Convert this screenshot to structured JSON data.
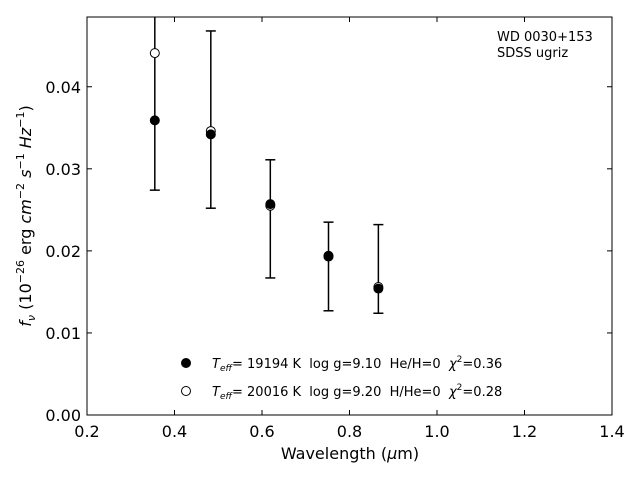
{
  "chart_data": {
    "type": "scatter",
    "annotation": [
      "WD 0030+153",
      "SDSS ugriz"
    ],
    "xlabel": "Wavelength (μm)",
    "ylabel": "f_ν (10^-26 erg cm^-2 s^-1 Hz^-1)",
    "xlim": [
      0.2,
      1.4
    ],
    "ylim": [
      0.0,
      0.0485
    ],
    "xticks": [
      0.2,
      0.4,
      0.6,
      0.8,
      1.0,
      1.2,
      1.4
    ],
    "yticks": [
      0.0,
      0.01,
      0.02,
      0.03,
      0.04
    ],
    "xtick_labels": [
      "0.2",
      "0.4",
      "0.6",
      "0.8",
      "1.0",
      "1.2",
      "1.4"
    ],
    "ytick_labels": [
      "0.00",
      "0.01",
      "0.02",
      "0.03",
      "0.04"
    ],
    "grid": false,
    "legend_placement": "bottom-center",
    "observed": {
      "x": [
        0.355,
        0.483,
        0.619,
        0.752,
        0.866
      ],
      "y": [
        0.0359,
        0.0342,
        0.0257,
        0.0194,
        0.0154
      ],
      "yerr_low": [
        0.0274,
        0.0252,
        0.0167,
        0.0127,
        0.0124
      ],
      "yerr_high": [
        0.0485,
        0.0468,
        0.0311,
        0.0235,
        0.0232
      ]
    },
    "series": [
      {
        "name": "T_eff= 19194 K  log g=9.10  He/H=0  χ²=0.36",
        "marker": "filled",
        "x": [
          0.355,
          0.483,
          0.619,
          0.752,
          0.866
        ],
        "y": [
          0.0359,
          0.0342,
          0.0257,
          0.0194,
          0.0154
        ]
      },
      {
        "name": "T_eff= 20016 K  log g=9.20  H/He=0  χ²=0.28",
        "marker": "open",
        "x": [
          0.355,
          0.483,
          0.619,
          0.752,
          0.866
        ],
        "y": [
          0.0441,
          0.0346,
          0.0255,
          0.0193,
          0.0156
        ]
      }
    ],
    "legend": [
      {
        "marker": "filled",
        "teff_label": "T",
        "teff_sub": "eff",
        "teff_value": "= 19194 K  log g=9.10  He/H=0  ",
        "chi_label": "χ",
        "chi_sup": "2",
        "chi_value": "=0.36"
      },
      {
        "marker": "open",
        "teff_label": "T",
        "teff_sub": "eff",
        "teff_value": "= 20016 K  log g=9.20  H/He=0  ",
        "chi_label": "χ",
        "chi_sup": "2",
        "chi_value": "=0.28"
      }
    ]
  },
  "colors": {
    "marker_edge": "#000000",
    "filled_marker": "#000000",
    "open_marker": "#ffffff",
    "axes": "#000000"
  }
}
